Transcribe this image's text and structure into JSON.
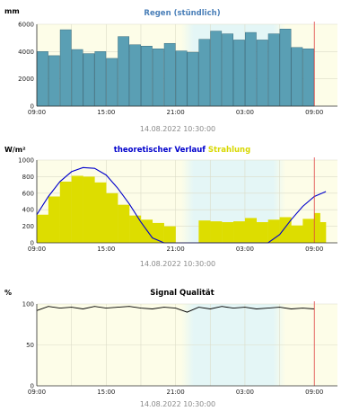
{
  "colors": {
    "plot_bg": "#fdfde8",
    "band_bg": "#e4f6f6",
    "grid": "#dcdcc8",
    "rain_bar": "#5a9fb4",
    "rain_edge": "#3a6e80",
    "radiation": "#dddd00",
    "curve": "#0000cc",
    "quality_line": "#000000",
    "now_marker": "#e04040",
    "title_blue": "#4a7fb8"
  },
  "charts": [
    {
      "key": "rain",
      "title_parts": [
        {
          "text": "Regen (stündlich)",
          "color": "#4a7fb8"
        }
      ],
      "ylabel": "mm",
      "timestamp": "14.08.2022 10:30:00"
    },
    {
      "key": "radiation",
      "title_parts": [
        {
          "text": "theoretischer Verlauf",
          "color": "#0000cc"
        },
        {
          "text": "Strahlung",
          "color": "#d8d800"
        }
      ],
      "ylabel": "W/m²",
      "timestamp": "14.08.2022 10:30:00"
    },
    {
      "key": "quality",
      "title_parts": [
        {
          "text": "Signal Qualität",
          "color": "#000000"
        }
      ],
      "ylabel": "%",
      "timestamp": "14.08.2022 10:30:00"
    }
  ],
  "chart_data": [
    {
      "type": "bar",
      "title": "Regen (stündlich)",
      "ylabel": "mm",
      "x_hours": [
        0,
        1,
        2,
        3,
        4,
        5,
        6,
        7,
        8,
        9,
        10,
        11,
        12,
        13,
        14,
        15,
        16,
        17,
        18,
        19,
        20,
        21,
        22,
        23
      ],
      "values": [
        4000,
        3700,
        5600,
        4150,
        3850,
        4000,
        3500,
        5100,
        4500,
        4400,
        4200,
        4600,
        4050,
        3950,
        4900,
        5500,
        5300,
        4850,
        5400,
        4850,
        5300,
        5650,
        4300,
        4200
      ],
      "ylim": [
        0,
        6000
      ],
      "yticks": [
        0,
        2000,
        4000,
        6000
      ],
      "x_range_hours": [
        0,
        26
      ],
      "xtick_hours": [
        0,
        6,
        12,
        18,
        24
      ],
      "xtick_labels": [
        "09:00",
        "15:00",
        "21:00",
        "03:00",
        "09:00"
      ],
      "shaded_hours": [
        12.5,
        21.5
      ],
      "now_hour": 24
    },
    {
      "type": "area",
      "title": "theoretischer Verlauf Strahlung",
      "ylabel": "W/m²",
      "ylim": [
        0,
        1000
      ],
      "yticks": [
        0,
        200,
        400,
        600,
        800,
        1000
      ],
      "x_range_hours": [
        0,
        26
      ],
      "xtick_hours": [
        0,
        6,
        12,
        18,
        24
      ],
      "xtick_labels": [
        "09:00",
        "15:00",
        "21:00",
        "03:00",
        "09:00"
      ],
      "shaded_hours": [
        12.5,
        21.5
      ],
      "now_hour": 24,
      "series": [
        {
          "name": "Strahlung",
          "x_hours": [
            0,
            1,
            2,
            3,
            4,
            5,
            6,
            7,
            8,
            9,
            10,
            11,
            12,
            13,
            14,
            15,
            16,
            17,
            18,
            19,
            20,
            21,
            22,
            23,
            24,
            24.5
          ],
          "values": [
            340,
            560,
            740,
            810,
            800,
            730,
            600,
            460,
            330,
            280,
            240,
            200,
            0,
            0,
            270,
            260,
            250,
            260,
            300,
            250,
            280,
            310,
            210,
            290,
            360,
            250
          ]
        },
        {
          "name": "theoretischer Verlauf",
          "x_hours": [
            0,
            1,
            2,
            3,
            4,
            5,
            6,
            7,
            8,
            9,
            10,
            11,
            12,
            13,
            14,
            15,
            16,
            17,
            18,
            19,
            20,
            21,
            22,
            23,
            24,
            25
          ],
          "values": [
            340,
            560,
            740,
            860,
            910,
            900,
            820,
            660,
            470,
            250,
            60,
            0,
            0,
            0,
            0,
            0,
            0,
            0,
            0,
            0,
            0,
            100,
            280,
            440,
            560,
            620
          ]
        }
      ]
    },
    {
      "type": "line",
      "title": "Signal Qualität",
      "ylabel": "%",
      "ylim": [
        0,
        100
      ],
      "yticks": [
        0,
        50,
        100
      ],
      "x_range_hours": [
        0,
        26
      ],
      "xtick_hours": [
        0,
        6,
        12,
        18,
        24
      ],
      "xtick_labels": [
        "09:00",
        "15:00",
        "21:00",
        "03:00",
        "09:00"
      ],
      "shaded_hours": [
        12.5,
        21.5
      ],
      "now_hour": 24,
      "series": [
        {
          "name": "Signal Qualität",
          "x_hours": [
            0,
            1,
            2,
            3,
            4,
            5,
            6,
            7,
            8,
            9,
            10,
            11,
            12,
            13,
            14,
            15,
            16,
            17,
            18,
            19,
            20,
            21,
            22,
            23,
            24
          ],
          "values": [
            92,
            97,
            95,
            96,
            94,
            97,
            95,
            96,
            97,
            95,
            94,
            96,
            95,
            90,
            96,
            94,
            97,
            95,
            96,
            94,
            95,
            96,
            94,
            95,
            94
          ]
        }
      ]
    }
  ]
}
